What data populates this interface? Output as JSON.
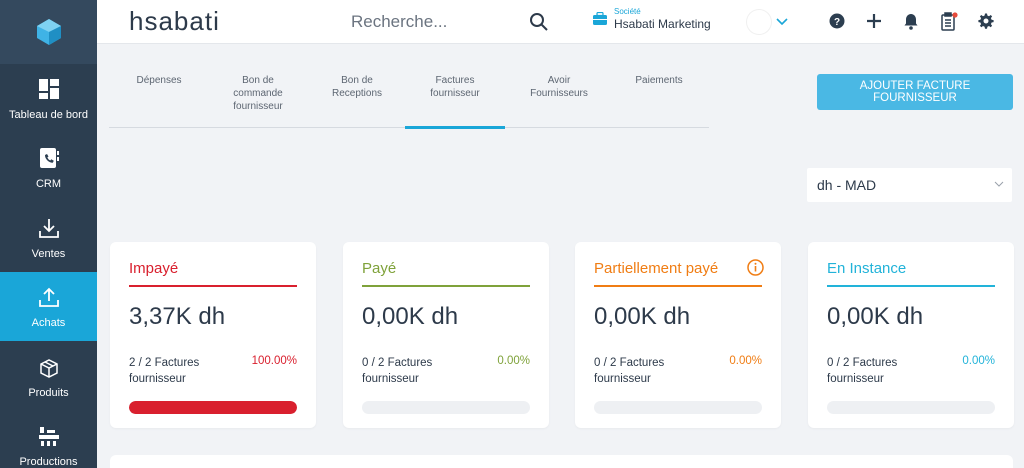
{
  "sidebar": {
    "items": [
      {
        "label": "Tableau de bord",
        "icon": "dashboard-icon"
      },
      {
        "label": "CRM",
        "icon": "contacts-icon"
      },
      {
        "label": "Ventes",
        "icon": "download-icon"
      },
      {
        "label": "Achats",
        "icon": "upload-icon",
        "active": true
      },
      {
        "label": "Produits",
        "icon": "boxes-icon"
      },
      {
        "label": "Productions",
        "icon": "factory-icon"
      }
    ]
  },
  "header": {
    "brand": "hsabati",
    "search_placeholder": "Recherche...",
    "company_label": "Société",
    "company_name": "Hsabati Marketing"
  },
  "tabs": [
    {
      "label": "Dépenses"
    },
    {
      "label": "Bon de commande fournisseur"
    },
    {
      "label": "Bon de Receptions"
    },
    {
      "label": "Factures fournisseur",
      "active": true
    },
    {
      "label": "Avoir Fournisseurs"
    },
    {
      "label": "Paiements"
    }
  ],
  "add_button": "AJOUTER FACTURE FOURNISSEUR",
  "currency": "dh - MAD",
  "cards": [
    {
      "title": "Impayé",
      "amount": "3,37K dh",
      "count": "2 / 2 Factures fournisseur",
      "percent": "100.00%",
      "progress": 1.0,
      "color": "#d9202e"
    },
    {
      "title": "Payé",
      "amount": "0,00K dh",
      "count": "0 / 2 Factures fournisseur",
      "percent": "0.00%",
      "progress": 0.0,
      "color": "#7fa23a"
    },
    {
      "title": "Partiellement payé",
      "amount": "0,00K dh",
      "count": "0 / 2 Factures fournisseur",
      "percent": "0.00%",
      "progress": 0.0,
      "color": "#f07d14"
    },
    {
      "title": "En Instance",
      "amount": "0,00K dh",
      "count": "0 / 2 Factures fournisseur",
      "percent": "0.00%",
      "progress": 0.0,
      "color": "#22b3d9"
    }
  ],
  "colors": {
    "accent": "#1aa6d8",
    "sidebar": "#2c3e50"
  }
}
